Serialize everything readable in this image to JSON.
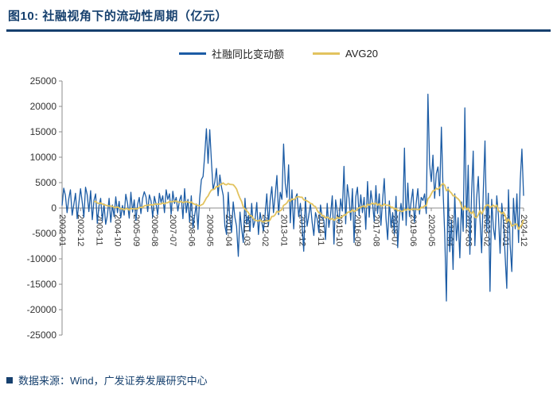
{
  "header": {
    "title": "图10:  社融视角下的流动性周期（亿元）"
  },
  "footer": {
    "source": "数据来源：Wind，广发证券发展研究中心"
  },
  "colors": {
    "title_navy": "#16406e",
    "axis_gray": "#8c8c8c",
    "label_text": "#333333",
    "series_blue": "#1c5ca5",
    "series_gold": "#e2c35f"
  },
  "chart_data": {
    "type": "line",
    "title": "图10: 社融视角下的流动性周期（亿元）",
    "xlabel": "",
    "ylabel": "",
    "x_unit": "month",
    "x_range": [
      "2002-01",
      "2024-12"
    ],
    "ylim": [
      -25000,
      25000
    ],
    "y_ticks": [
      25000,
      20000,
      15000,
      10000,
      5000,
      0,
      -5000,
      -10000,
      -15000,
      -20000,
      -25000
    ],
    "x_tick_positions": [
      0,
      11,
      22,
      33,
      44,
      55,
      66,
      77,
      88,
      99,
      110,
      121,
      132,
      143,
      154,
      165,
      176,
      187,
      198,
      209,
      220,
      231,
      242,
      253,
      264,
      275
    ],
    "x_tick_labels": [
      "2002-01",
      "2002-12",
      "2003-11",
      "2004-10",
      "2005-09",
      "2006-08",
      "2007-07",
      "2008-06",
      "2009-05",
      "2010-04",
      "2011-03",
      "2012-02",
      "2013-01",
      "2013-12",
      "2014-11",
      "2015-10",
      "2016-09",
      "2017-08",
      "2018-07",
      "2019-06",
      "2020-05",
      "2021-04",
      "2022-03",
      "2023-02",
      "2024-01",
      "2024-12"
    ],
    "legend_position": "top-center",
    "grid": false,
    "series": [
      {
        "name": "社融同比变动额",
        "color": "#1c5ca5",
        "values": [
          500,
          3900,
          2500,
          -900,
          1800,
          3600,
          -1400,
          700,
          2900,
          -2100,
          900,
          3800,
          1200,
          -1800,
          4100,
          2600,
          -700,
          3400,
          -2300,
          1500,
          2800,
          -3000,
          400,
          1900,
          -2500,
          800,
          -3200,
          -1500,
          1900,
          -2800,
          600,
          -1700,
          2200,
          -900,
          1300,
          -1900,
          500,
          -1400,
          2700,
          900,
          -2000,
          3100,
          -800,
          1600,
          -2400,
          700,
          2100,
          -1100,
          1900,
          3200,
          2200,
          -700,
          2600,
          1400,
          -1800,
          2300,
          800,
          -1300,
          2900,
          1100,
          2400,
          -900,
          3600,
          1700,
          2800,
          -1200,
          3300,
          900,
          2100,
          -600,
          1500,
          2500,
          -2100,
          3800,
          -900,
          1700,
          -2700,
          2400,
          -3900,
          -1500,
          800,
          -4200,
          1900,
          5600,
          6200,
          10500,
          15600,
          8800,
          15400,
          9200,
          3600,
          5100,
          7800,
          2400,
          6500,
          4100,
          2500,
          -3500,
          -5200,
          3100,
          -2200,
          -4800,
          1200,
          -1800,
          -3600,
          -9500,
          -800,
          -4100,
          -6800,
          1900,
          -3200,
          -1500,
          -4600,
          900,
          -3800,
          -2400,
          1100,
          -5200,
          -900,
          -2800,
          -4500,
          -1200,
          2800,
          -3400,
          1500,
          4200,
          -900,
          2600,
          6400,
          -1300,
          3100,
          1700,
          12600,
          4800,
          2100,
          8500,
          -2900,
          3600,
          -4100,
          1900,
          2800,
          -1700,
          900,
          -3200,
          -8500,
          2100,
          -3600,
          -1500,
          800,
          -2800,
          -5400,
          -900,
          -2100,
          -4800,
          600,
          -1900,
          -2400,
          -6200,
          900,
          -3800,
          -1200,
          2400,
          -7100,
          1600,
          -800,
          -2900,
          1800,
          -600,
          8200,
          -3100,
          4600,
          1900,
          -2400,
          3800,
          -6800,
          2200,
          4100,
          -1500,
          2600,
          -900,
          2100,
          -4200,
          5200,
          -1800,
          3400,
          900,
          -2600,
          4400,
          -1100,
          2800,
          -3400,
          1500,
          5800,
          -2100,
          -6200,
          1400,
          -3800,
          -900,
          -5100,
          2300,
          -7800,
          -1600,
          900,
          -2400,
          11800,
          -3400,
          4900,
          -1700,
          1300,
          3700,
          -2800,
          900,
          3800,
          -1200,
          2100,
          1500,
          2800,
          -1100,
          22400,
          8600,
          5200,
          10400,
          1900,
          6800,
          8100,
          2400,
          15900,
          3600,
          -5200,
          -18300,
          4100,
          -8600,
          -2400,
          -12100,
          2800,
          -6400,
          -1900,
          -9800,
          1200,
          -4600,
          19700,
          -3800,
          8400,
          -9100,
          2600,
          11200,
          -7400,
          1800,
          6200,
          -2100,
          -8800,
          3400,
          13200,
          -4600,
          2900,
          -16400,
          1700,
          -3800,
          -6200,
          2400,
          -1500,
          -8900,
          900,
          -2600,
          -9400,
          -15800,
          3600,
          -7200,
          -12500,
          1900,
          -4100,
          2800,
          -6800,
          5400,
          11600,
          2400
        ]
      },
      {
        "name": "AVG20",
        "color": "#e2c35f",
        "derived": "20-period moving average of 社融同比变动额",
        "window": 20
      }
    ]
  }
}
